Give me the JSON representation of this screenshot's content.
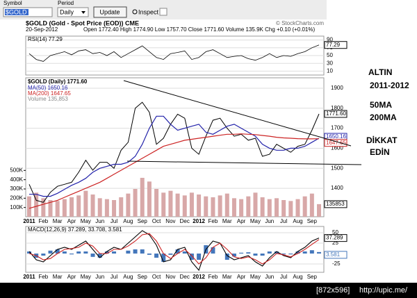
{
  "toolbar": {
    "symbol_label": "Symbol",
    "symbol": "$GOLD",
    "period_label": "Period",
    "period": "Daily",
    "update": "Update",
    "inspect": "Inspect"
  },
  "chart_data": {
    "type": "stock",
    "title": "$GOLD (Gold - Spot Price (EOD)) CME",
    "credit": "© StockCharts.com",
    "date": "20-Sep-2012",
    "quote": "Open 1772.40 High 1774.90 Low 1757.70 Close 1771.60 Volume 135.9K Chg +0.10 (+0.01%)",
    "categories": [
      "2011",
      null,
      "Feb",
      null,
      "Mar",
      null,
      "Apr",
      null,
      "May",
      null,
      "Jun",
      null,
      "Jul",
      null,
      "Aug",
      null,
      "Sep",
      null,
      "Oct",
      null,
      "Nov",
      null,
      "Dec",
      null,
      "2012",
      null,
      "Feb",
      null,
      "Mar",
      null,
      "Apr",
      null,
      "May",
      null,
      "Jun",
      null,
      "Jul",
      null,
      "Aug",
      null,
      "Sep",
      null
    ],
    "rsi": {
      "legend": "RSI(14) 77.29",
      "color": "#000000",
      "ylim": [
        0,
        100
      ],
      "yticks": [
        10,
        30,
        50,
        70,
        90
      ],
      "last_label": "77.29",
      "values": [
        55,
        40,
        35,
        50,
        55,
        60,
        52,
        62,
        65,
        55,
        58,
        50,
        60,
        45,
        55,
        65,
        75,
        60,
        45,
        40,
        55,
        58,
        62,
        40,
        45,
        60,
        65,
        55,
        45,
        48,
        50,
        42,
        38,
        45,
        55,
        45,
        50,
        48,
        55,
        60,
        70,
        77.29
      ]
    },
    "price": {
      "legend": "$GOLD (Daily) 1771.60",
      "ylim": [
        1258,
        1952
      ],
      "yticks": [
        1400,
        1500,
        1600,
        1700,
        1800,
        1900
      ],
      "last_label": "1771.60",
      "series": [
        {
          "name": "$GOLD",
          "color": "#000000",
          "values": [
            1420,
            1340,
            1330,
            1380,
            1410,
            1420,
            1430,
            1480,
            1540,
            1490,
            1530,
            1530,
            1500,
            1590,
            1630,
            1800,
            1830,
            1780,
            1620,
            1650,
            1720,
            1770,
            1750,
            1600,
            1570,
            1660,
            1740,
            1750,
            1700,
            1660,
            1670,
            1640,
            1650,
            1560,
            1570,
            1620,
            1600,
            1580,
            1610,
            1620,
            1690,
            1771.6
          ]
        },
        {
          "name": "MA(50) 1650.16",
          "color": "#2222aa",
          "label": "1650.16",
          "values": [
            1370,
            1370,
            1360,
            1360,
            1375,
            1395,
            1415,
            1430,
            1450,
            1480,
            1500,
            1510,
            1520,
            1520,
            1530,
            1560,
            1620,
            1700,
            1760,
            1760,
            1720,
            1690,
            1700,
            1710,
            1720,
            1680,
            1670,
            1690,
            1710,
            1720,
            1700,
            1680,
            1660,
            1620,
            1600,
            1590,
            1590,
            1600,
            1600,
            1610,
            1630,
            1650.16
          ]
        },
        {
          "name": "MA(200) 1647.65",
          "color": "#cc2222",
          "label": "1647.65",
          "values": [
            1300,
            1310,
            1320,
            1330,
            1340,
            1355,
            1370,
            1385,
            1400,
            1415,
            1430,
            1450,
            1470,
            1490,
            1510,
            1530,
            1550,
            1570,
            1590,
            1610,
            1620,
            1630,
            1640,
            1645,
            1650,
            1655,
            1660,
            1665,
            1670,
            1670,
            1672,
            1670,
            1668,
            1664,
            1660,
            1655,
            1652,
            1650,
            1648,
            1647,
            1647,
            1647.65
          ]
        }
      ]
    },
    "volume": {
      "name": "Volume 135,853",
      "color": "#d8a8a8",
      "ylim": [
        0,
        1500000
      ],
      "last_label": "135853",
      "yticks": [
        {
          "value": 100000,
          "label": "100K"
        },
        {
          "value": 200000,
          "label": "200K"
        },
        {
          "value": 300000,
          "label": "300K"
        },
        {
          "value": 400000,
          "label": "400K"
        },
        {
          "value": 500000,
          "label": "500K"
        }
      ],
      "values": [
        220000,
        260000,
        200000,
        180000,
        170000,
        190000,
        210000,
        230000,
        280000,
        240000,
        200000,
        190000,
        180000,
        210000,
        250000,
        300000,
        420000,
        380000,
        300000,
        260000,
        280000,
        250000,
        230000,
        260000,
        240000,
        220000,
        210000,
        230000,
        250000,
        200000,
        190000,
        220000,
        260000,
        210000,
        190000,
        200000,
        180000,
        170000,
        190000,
        220000,
        250000,
        135853
      ]
    },
    "macd": {
      "legend": "MACD(12,26,9) 37.289, 33.708, 3.581",
      "ylim": [
        -45,
        65
      ],
      "yticks": [
        -25,
        25,
        50
      ],
      "series": [
        {
          "name": "MACD",
          "color": "#000000",
          "label": "37.289",
          "values": [
            5,
            -15,
            -20,
            -5,
            10,
            15,
            10,
            20,
            30,
            10,
            -10,
            5,
            15,
            10,
            25,
            40,
            55,
            45,
            20,
            -20,
            -15,
            10,
            15,
            -20,
            -40,
            10,
            30,
            25,
            -5,
            -15,
            -10,
            -5,
            -20,
            -30,
            -10,
            5,
            -5,
            -10,
            5,
            15,
            30,
            37.289
          ]
        },
        {
          "name": "Signal",
          "color": "#cc2222",
          "values": [
            0,
            -5,
            -15,
            -12,
            0,
            10,
            12,
            15,
            25,
            18,
            0,
            0,
            10,
            10,
            18,
            30,
            45,
            48,
            30,
            0,
            -12,
            0,
            10,
            -5,
            -25,
            -10,
            15,
            25,
            10,
            -8,
            -12,
            -8,
            -15,
            -25,
            -15,
            0,
            -3,
            -8,
            0,
            10,
            22,
            33.708
          ]
        },
        {
          "name": "Histogram",
          "color": "#4477bb",
          "label": "3.581",
          "values": [
            5,
            -10,
            -5,
            7,
            10,
            5,
            -2,
            5,
            5,
            -8,
            -10,
            5,
            5,
            0,
            7,
            10,
            10,
            -3,
            -10,
            -20,
            -3,
            10,
            5,
            -15,
            -15,
            20,
            15,
            0,
            -15,
            -7,
            2,
            3,
            -5,
            -5,
            5,
            5,
            -2,
            -2,
            5,
            5,
            8,
            3.581
          ]
        }
      ]
    }
  },
  "annotations": {
    "line1": "ALTIN",
    "line2": "2011-2012",
    "line3": "50MA",
    "line4": "200MA",
    "line5": "DİKKAT",
    "line6": "EDİN"
  },
  "footer": {
    "size": "[872x596]",
    "url": "http://upic.me/"
  }
}
